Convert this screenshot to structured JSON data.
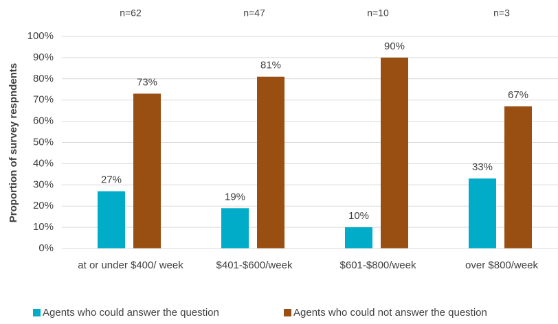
{
  "chart_data": {
    "type": "bar",
    "y_label": "Proportion of survey respndents",
    "categories": [
      "at or under $400/ week",
      "$401-$600/week",
      "$601-$800/week",
      "over $800/week"
    ],
    "annotations": [
      "n=62",
      "n=47",
      "n=10",
      "n=3"
    ],
    "series": [
      {
        "name": "Agents who could answer the question",
        "color": "#00acc8",
        "values": [
          27,
          19,
          10,
          33
        ],
        "value_labels": [
          "27%",
          "19%",
          "10%",
          "33%"
        ]
      },
      {
        "name": "Agents who could not answer the question",
        "color": "#9a4f12",
        "values": [
          73,
          81,
          90,
          67
        ],
        "value_labels": [
          "73%",
          "81%",
          "90%",
          "67%"
        ]
      }
    ],
    "ylim": [
      0,
      100
    ],
    "yticks": [
      {
        "value": 0,
        "label": "0%"
      },
      {
        "value": 10,
        "label": "10%"
      },
      {
        "value": 20,
        "label": "20%"
      },
      {
        "value": 30,
        "label": "30%"
      },
      {
        "value": 40,
        "label": "40%"
      },
      {
        "value": 50,
        "label": "50%"
      },
      {
        "value": 60,
        "label": "60%"
      },
      {
        "value": 70,
        "label": "70%"
      },
      {
        "value": 80,
        "label": "80%"
      },
      {
        "value": 90,
        "label": "90%"
      },
      {
        "value": 100,
        "label": "100%"
      }
    ],
    "grid": true
  }
}
